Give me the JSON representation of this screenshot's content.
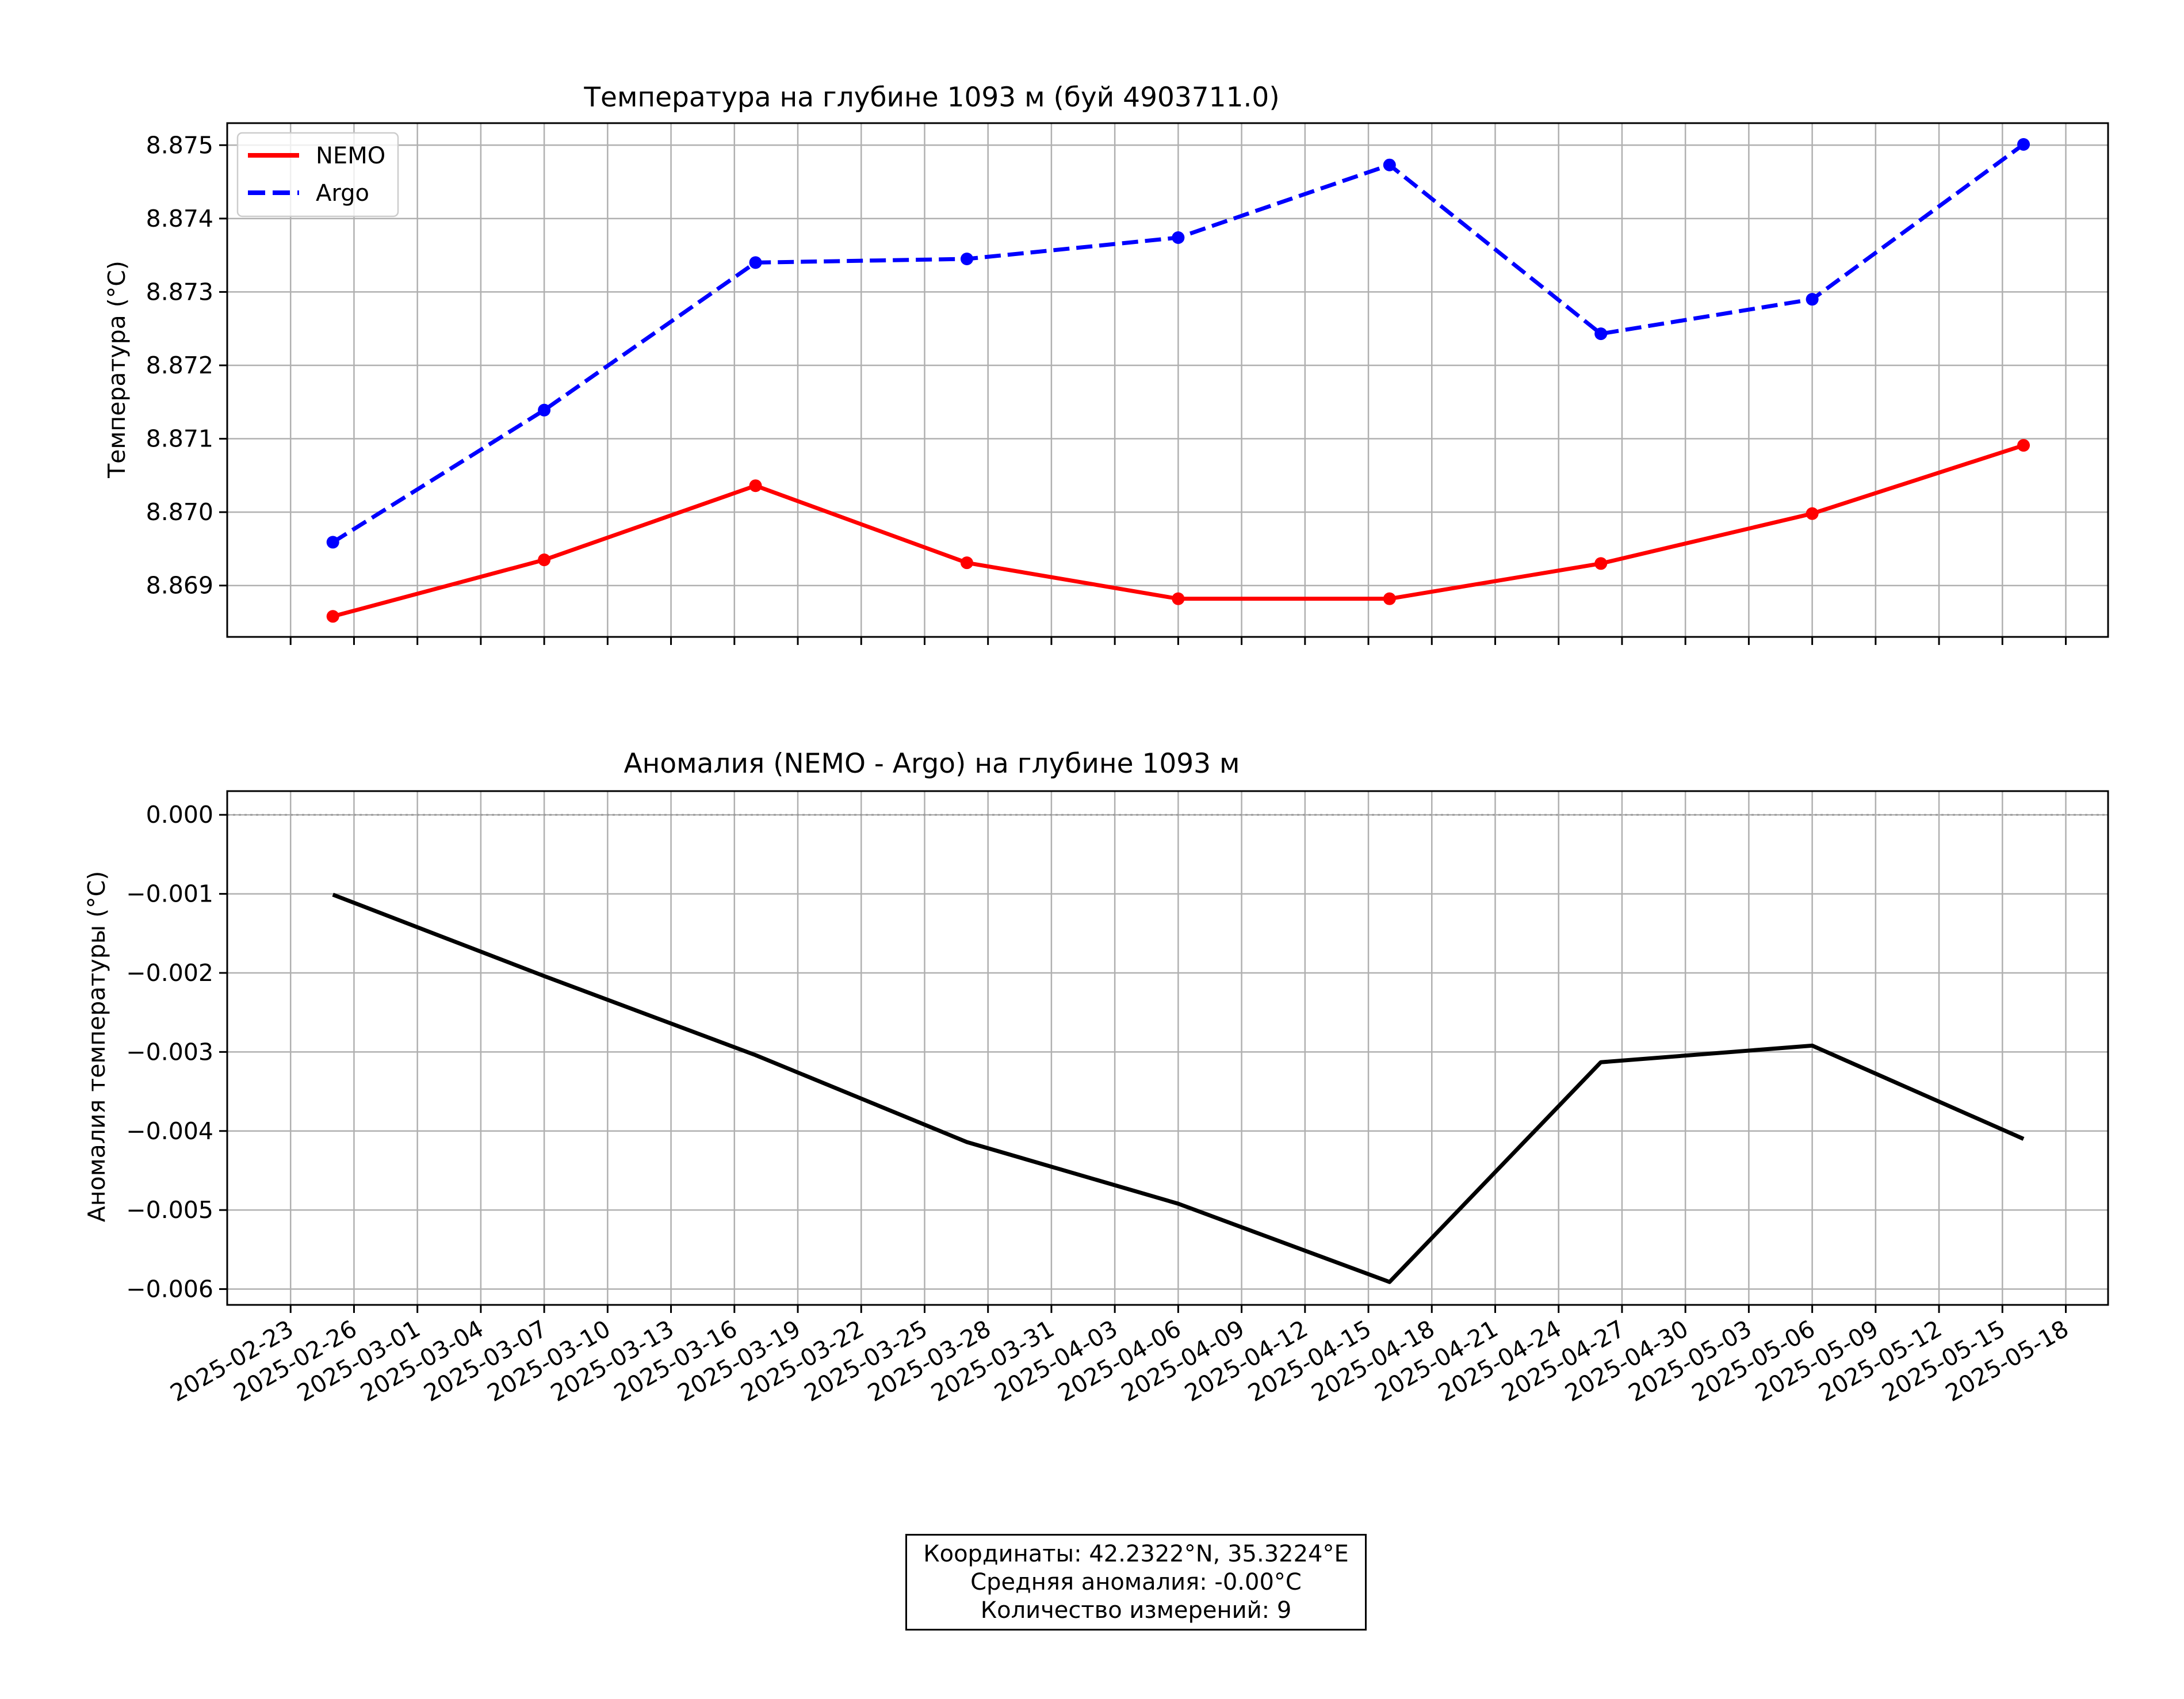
{
  "chart_data": [
    {
      "type": "line",
      "title": "Температура на глубине 1093 м (буй 4903711.0)",
      "xlabel": "",
      "ylabel": "Температура (°C)",
      "ylim": [
        8.8683,
        8.8753
      ],
      "xlim": [
        "2025-02-20",
        "2025-05-20"
      ],
      "grid": true,
      "legend": "top-left",
      "x": [
        "2025-02-25",
        "2025-03-07",
        "2025-03-17",
        "2025-03-27",
        "2025-04-06",
        "2025-04-16",
        "2025-04-26",
        "2025-05-06",
        "2025-05-16"
      ],
      "yticks": [
        "8.869",
        "8.870",
        "8.871",
        "8.872",
        "8.873",
        "8.874",
        "8.875"
      ],
      "series": [
        {
          "name": "NEMO",
          "color": "#ff0000",
          "style": "solid",
          "values": [
            8.86858,
            8.86935,
            8.87036,
            8.86931,
            8.86882,
            8.86882,
            8.8693,
            8.86998,
            8.87091
          ]
        },
        {
          "name": "Argo",
          "color": "#0000ff",
          "style": "dashed",
          "values": [
            8.86959,
            8.87139,
            8.8734,
            8.87345,
            8.87374,
            8.87473,
            8.87243,
            8.8729,
            8.87501
          ]
        }
      ]
    },
    {
      "type": "line",
      "title": "Аномалия (NEMO - Argo) на глубине 1093 м",
      "xlabel": "",
      "ylabel": "Аномалия температуры (°C)",
      "ylim": [
        -0.0062,
        0.0003
      ],
      "xlim": [
        "2025-02-20",
        "2025-05-20"
      ],
      "grid": true,
      "zero_line": true,
      "yticks": [
        "0.000",
        "−0.001",
        "−0.002",
        "−0.003",
        "−0.004",
        "−0.005",
        "−0.006"
      ],
      "x": [
        "2025-02-25",
        "2025-03-07",
        "2025-03-17",
        "2025-03-27",
        "2025-04-06",
        "2025-04-16",
        "2025-04-26",
        "2025-05-06",
        "2025-05-16"
      ],
      "xtick_labels": [
        "2025-02-23",
        "2025-02-26",
        "2025-03-01",
        "2025-03-04",
        "2025-03-07",
        "2025-03-10",
        "2025-03-13",
        "2025-03-16",
        "2025-03-19",
        "2025-03-22",
        "2025-03-25",
        "2025-03-28",
        "2025-03-31",
        "2025-04-03",
        "2025-04-06",
        "2025-04-09",
        "2025-04-12",
        "2025-04-15",
        "2025-04-18",
        "2025-04-21",
        "2025-04-24",
        "2025-04-27",
        "2025-04-30",
        "2025-05-03",
        "2025-05-06",
        "2025-05-09",
        "2025-05-12",
        "2025-05-15",
        "2025-05-18"
      ],
      "series": [
        {
          "color": "#000000",
          "style": "solid",
          "values": [
            -0.00101,
            -0.00204,
            -0.00304,
            -0.00414,
            -0.00492,
            -0.00591,
            -0.00313,
            -0.00292,
            -0.0041
          ]
        }
      ]
    }
  ],
  "info": {
    "line1": "Координаты: 42.2322°N, 35.3224°E",
    "line2": "Средняя аномалия: -0.00°C",
    "line3": "Количество измерений: 9"
  }
}
